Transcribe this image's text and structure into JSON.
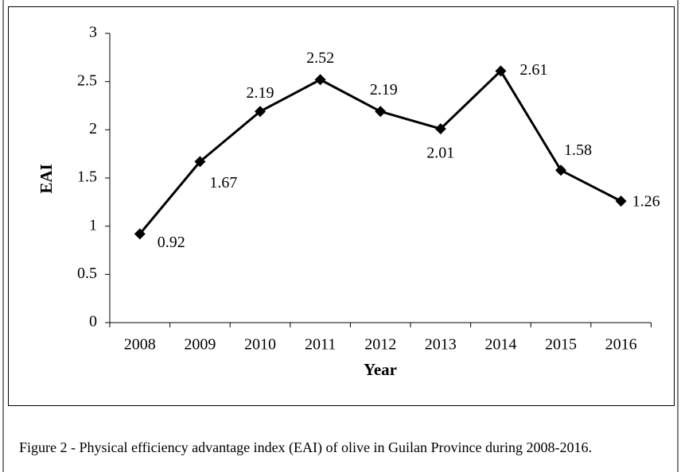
{
  "chart_data": {
    "type": "line",
    "ylabel": "EAI",
    "xlabel": "Year",
    "caption": "Figure 2 - Physical efficiency advantage index (EAI) of olive in Guilan Province during 2008-2016.",
    "categories": [
      "2008",
      "2009",
      "2010",
      "2011",
      "2012",
      "2013",
      "2014",
      "2015",
      "2016"
    ],
    "values": [
      0.92,
      1.67,
      2.19,
      2.52,
      2.19,
      2.01,
      2.61,
      1.58,
      1.26
    ],
    "color": "#000000",
    "ylim": [
      0,
      3
    ],
    "yticks": [
      0,
      0.5,
      1,
      1.5,
      2,
      2.5,
      3
    ],
    "grid": false
  }
}
